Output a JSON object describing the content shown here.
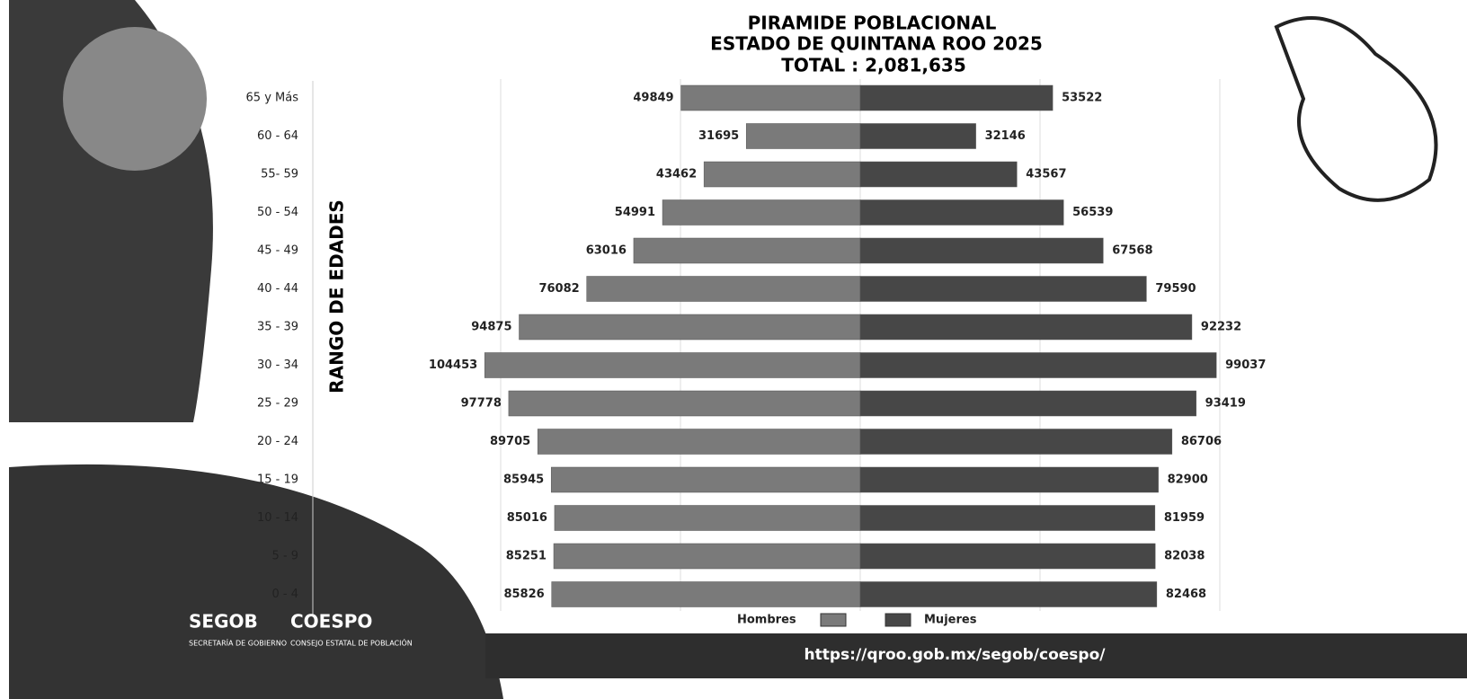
{
  "chart_data": {
    "type": "pyramid",
    "title": [
      "PIRAMIDE POBLACIONAL",
      "ESTADO DE QUINTANA ROO 2025",
      "TOTAL : 2,081,635"
    ],
    "y_label": "RANGO DE EDADES",
    "categories": [
      "65 y Más",
      "60 - 64",
      "55- 59",
      "50 - 54",
      "45 - 49",
      "40 - 44",
      "35 - 39",
      "30 - 34",
      "25 - 29",
      "20 - 24",
      "15 - 19",
      "10 - 14",
      "5 - 9",
      "0 - 4"
    ],
    "series": [
      {
        "name": "Hombres",
        "color": "#7a7a7a",
        "values": [
          49849,
          31695,
          43462,
          54991,
          63016,
          76082,
          94875,
          104453,
          97778,
          89705,
          85945,
          85016,
          85251,
          85826
        ]
      },
      {
        "name": "Mujeres",
        "color": "#474747",
        "values": [
          53522,
          32146,
          43567,
          56539,
          67568,
          79590,
          92232,
          99037,
          93419,
          86706,
          82900,
          81959,
          82038,
          82468
        ]
      }
    ],
    "xlim": [
      0,
      100000
    ],
    "xticks": [
      0,
      50000,
      100000
    ],
    "grid": true,
    "legend": "bottom"
  },
  "footer": {
    "url": "https://qroo.gob.mx/segob/coespo/",
    "segob": "SEGOB",
    "segob_sub": "SECRETARÍA DE GOBIERNO",
    "coespo": "COESPO",
    "coespo_sub": "CONSEJO ESTATAL DE POBLACIÓN"
  }
}
